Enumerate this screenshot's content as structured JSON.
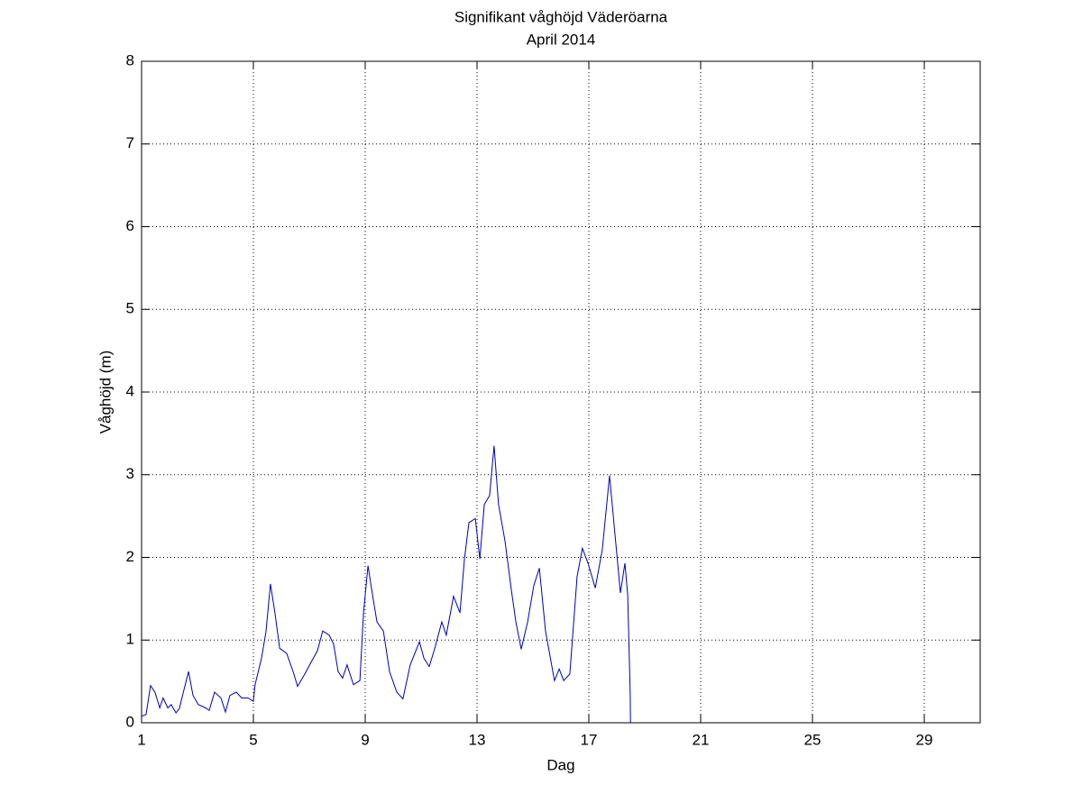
{
  "chart_data": {
    "type": "line",
    "title": "Signifikant våghöjd Väderöarna",
    "subtitle": "April 2014",
    "xlabel": "Dag",
    "ylabel": "Våghöjd (m)",
    "xlim": [
      1,
      31
    ],
    "ylim": [
      0,
      8
    ],
    "xticks": [
      1,
      5,
      9,
      13,
      17,
      21,
      25,
      29
    ],
    "yticks": [
      0,
      1,
      2,
      3,
      4,
      5,
      6,
      7,
      8
    ],
    "grid": true,
    "series": [
      {
        "color": "#0000b0",
        "x": [
          1,
          1.16,
          1.32,
          1.48,
          1.65,
          1.77,
          1.94,
          2.06,
          2.23,
          2.35,
          2.48,
          2.68,
          2.84,
          3.03,
          3.29,
          3.42,
          3.61,
          3.84,
          4.0,
          4.16,
          4.39,
          4.58,
          4.81,
          5.0,
          5.06,
          5.29,
          5.45,
          5.61,
          5.77,
          5.94,
          6.19,
          6.42,
          6.58,
          6.84,
          7.06,
          7.29,
          7.48,
          7.71,
          7.87,
          8.03,
          8.19,
          8.35,
          8.58,
          8.81,
          8.94,
          9.1,
          9.26,
          9.42,
          9.65,
          9.87,
          10.13,
          10.35,
          10.61,
          10.94,
          11.1,
          11.29,
          11.48,
          11.74,
          11.9,
          12.16,
          12.39,
          12.55,
          12.71,
          12.94,
          13.1,
          13.26,
          13.45,
          13.61,
          13.77,
          14.0,
          14.23,
          14.39,
          14.58,
          14.81,
          15.03,
          15.23,
          15.45,
          15.77,
          15.94,
          16.1,
          16.32,
          16.58,
          16.77,
          16.97,
          17.23,
          17.48,
          17.74,
          17.94,
          18.13,
          18.29,
          18.39,
          18.48,
          18.49
        ],
        "values": [
          0.08,
          0.1,
          0.45,
          0.37,
          0.18,
          0.3,
          0.18,
          0.22,
          0.12,
          0.17,
          0.35,
          0.62,
          0.33,
          0.22,
          0.18,
          0.15,
          0.37,
          0.3,
          0.13,
          0.33,
          0.37,
          0.3,
          0.3,
          0.26,
          0.46,
          0.78,
          1.1,
          1.68,
          1.33,
          0.9,
          0.84,
          0.62,
          0.44,
          0.59,
          0.73,
          0.87,
          1.11,
          1.06,
          0.95,
          0.62,
          0.54,
          0.7,
          0.46,
          0.51,
          1.33,
          1.9,
          1.55,
          1.22,
          1.11,
          0.62,
          0.37,
          0.29,
          0.7,
          0.98,
          0.78,
          0.68,
          0.89,
          1.22,
          1.06,
          1.53,
          1.33,
          1.98,
          2.42,
          2.47,
          1.98,
          2.64,
          2.75,
          3.35,
          2.64,
          2.2,
          1.6,
          1.22,
          0.89,
          1.22,
          1.66,
          1.87,
          1.11,
          0.51,
          0.65,
          0.51,
          0.59,
          1.77,
          2.11,
          1.93,
          1.63,
          2.09,
          2.99,
          2.26,
          1.57,
          1.93,
          1.55,
          0.35,
          0
        ]
      }
    ]
  }
}
